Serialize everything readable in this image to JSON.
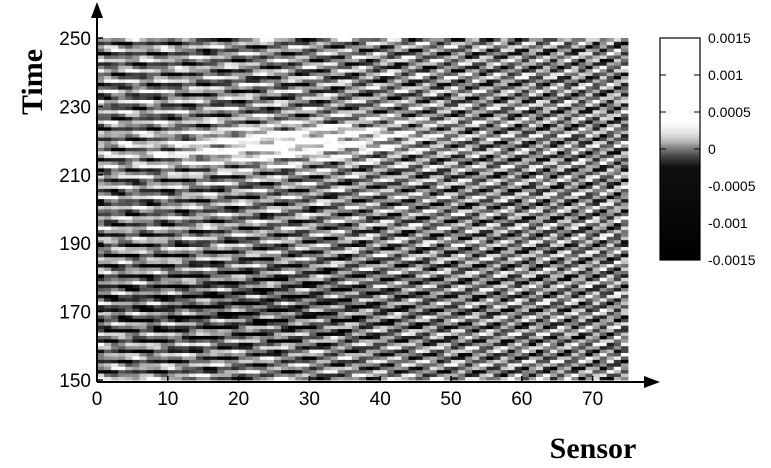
{
  "chart_data": {
    "type": "heatmap",
    "xlabel": "Sensor",
    "ylabel": "Time",
    "xlim": [
      0,
      75
    ],
    "ylim": [
      150,
      250
    ],
    "xticks": [
      "0",
      "10",
      "20",
      "30",
      "40",
      "50",
      "60",
      "70"
    ],
    "yticks": [
      "150",
      "170",
      "190",
      "210",
      "230",
      "250"
    ],
    "colorbar": {
      "range": [
        -0.0015,
        0.0015
      ],
      "ticks": [
        "0.0015",
        "0.001",
        "0.0005",
        "0",
        "-0.0005",
        "-0.001",
        "-0.0015"
      ],
      "colormap": "grayscale",
      "low_color": "#000000",
      "high_color": "#ffffff"
    },
    "pattern": "curved diagonal wavefronts rising toward higher sensors; bright band near sensors 15-40 at times 210-225, darker banded region at times 160-180"
  }
}
